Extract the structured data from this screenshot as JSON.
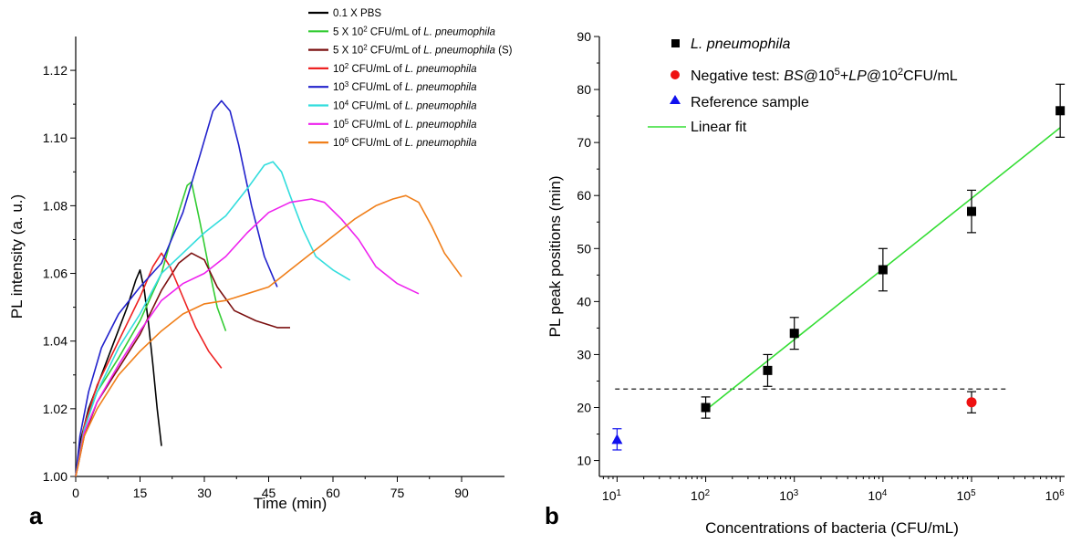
{
  "chart_data": [
    {
      "panel": "a",
      "type": "line",
      "xlabel": "Time (min)",
      "ylabel": "PL intensity (a. u.)",
      "xlim": [
        0,
        100
      ],
      "ylim": [
        1.0,
        1.13
      ],
      "xticks": [
        "0",
        "15",
        "30",
        "45",
        "60",
        "75",
        "90"
      ],
      "yticks": [
        "1.00",
        "1.02",
        "1.04",
        "1.06",
        "1.08",
        "1.10",
        "1.12"
      ],
      "legend_position": "top",
      "series": [
        {
          "name_parts": [
            "0.1 X PBS"
          ],
          "color": "#000000",
          "x": [
            0,
            1,
            3,
            6,
            9,
            12,
            14,
            15,
            16,
            17,
            18,
            19,
            20
          ],
          "y": [
            1.0,
            1.01,
            1.02,
            1.03,
            1.04,
            1.05,
            1.058,
            1.061,
            1.055,
            1.045,
            1.033,
            1.02,
            1.009
          ]
        },
        {
          "name_parts": [
            "5 X 10",
            "2",
            " CFU/mL of ",
            "L. pneumophila"
          ],
          "color": "#33cc33",
          "x": [
            0,
            2,
            5,
            10,
            15,
            20,
            24,
            26,
            27,
            29,
            31,
            33,
            35
          ],
          "y": [
            1.0,
            1.015,
            1.025,
            1.035,
            1.046,
            1.06,
            1.078,
            1.086,
            1.087,
            1.075,
            1.062,
            1.05,
            1.043
          ]
        },
        {
          "name_parts": [
            "5 X 10",
            "2",
            " CFU/mL of ",
            "L. pneumophila",
            " (S)"
          ],
          "color": "#7b1010",
          "x": [
            0,
            2,
            5,
            10,
            15,
            20,
            24,
            27,
            30,
            33,
            37,
            42,
            47,
            50
          ],
          "y": [
            1.0,
            1.012,
            1.022,
            1.032,
            1.042,
            1.055,
            1.063,
            1.066,
            1.064,
            1.056,
            1.049,
            1.046,
            1.044,
            1.044
          ]
        },
        {
          "name_parts": [
            "10",
            "2",
            " CFU/mL of ",
            "L. pneumophila"
          ],
          "color": "#ee2222",
          "x": [
            0,
            2,
            5,
            10,
            15,
            18,
            20,
            22,
            25,
            28,
            31,
            34
          ],
          "y": [
            1.0,
            1.015,
            1.027,
            1.04,
            1.053,
            1.062,
            1.066,
            1.062,
            1.053,
            1.044,
            1.037,
            1.032
          ]
        },
        {
          "name_parts": [
            "10",
            "3",
            " CFU/mL of ",
            "L. pneumophila"
          ],
          "color": "#2222cc",
          "x": [
            0,
            1,
            3,
            6,
            10,
            15,
            20,
            25,
            29,
            32,
            34,
            36,
            38,
            41,
            44,
            47
          ],
          "y": [
            1.0,
            1.012,
            1.025,
            1.038,
            1.048,
            1.056,
            1.063,
            1.078,
            1.095,
            1.108,
            1.111,
            1.108,
            1.098,
            1.08,
            1.065,
            1.056
          ]
        },
        {
          "name_parts": [
            "10",
            "4",
            " CFU/mL of ",
            "L. pneumophila"
          ],
          "color": "#33dddd",
          "x": [
            0,
            2,
            5,
            10,
            15,
            20,
            25,
            30,
            35,
            40,
            44,
            46,
            48,
            50,
            53,
            56,
            60,
            64
          ],
          "y": [
            1.0,
            1.014,
            1.025,
            1.038,
            1.048,
            1.06,
            1.066,
            1.072,
            1.077,
            1.085,
            1.092,
            1.093,
            1.09,
            1.083,
            1.073,
            1.065,
            1.061,
            1.058
          ]
        },
        {
          "name_parts": [
            "10",
            "5",
            " CFU/mL of ",
            "L. pneumophila"
          ],
          "color": "#ee22ee",
          "x": [
            0,
            2,
            5,
            10,
            15,
            20,
            25,
            30,
            35,
            40,
            45,
            50,
            55,
            58,
            62,
            66,
            70,
            75,
            80
          ],
          "y": [
            1.0,
            1.013,
            1.022,
            1.033,
            1.043,
            1.052,
            1.057,
            1.06,
            1.065,
            1.072,
            1.078,
            1.081,
            1.082,
            1.081,
            1.076,
            1.07,
            1.062,
            1.057,
            1.054
          ]
        },
        {
          "name_parts": [
            "10",
            "6",
            " CFU/mL of ",
            "L. pneumophila"
          ],
          "color": "#f07f1a",
          "x": [
            0,
            2,
            5,
            10,
            15,
            20,
            25,
            30,
            35,
            40,
            45,
            50,
            55,
            60,
            65,
            70,
            74,
            77,
            80,
            83,
            86,
            90
          ],
          "y": [
            1.0,
            1.012,
            1.02,
            1.03,
            1.037,
            1.043,
            1.048,
            1.051,
            1.052,
            1.054,
            1.056,
            1.061,
            1.066,
            1.071,
            1.076,
            1.08,
            1.082,
            1.083,
            1.081,
            1.074,
            1.066,
            1.059
          ]
        }
      ]
    },
    {
      "panel": "b",
      "type": "scatter",
      "xlabel": "Concentrations of bacteria (CFU/mL)",
      "ylabel": "PL peak positions (min)",
      "xscale": "log",
      "xlim_log10": [
        0.8,
        6.05
      ],
      "ylim": [
        7,
        90
      ],
      "xticks": [
        {
          "base": "10",
          "exp": "1"
        },
        {
          "base": "10",
          "exp": "2"
        },
        {
          "base": "10",
          "exp": "3"
        },
        {
          "base": "10",
          "exp": "4"
        },
        {
          "base": "10",
          "exp": "5"
        },
        {
          "base": "10",
          "exp": "6"
        }
      ],
      "yticks": [
        "10",
        "20",
        "30",
        "40",
        "50",
        "60",
        "70",
        "80",
        "90"
      ],
      "threshold_line": 23.5,
      "legend_position": "top-left",
      "legend": {
        "lp": "L. pneumophila",
        "neg_parts": [
          "Negative test: ",
          "BS",
          "@10",
          "5",
          "+",
          "LP",
          "@10",
          "2",
          "CFU/mL"
        ],
        "ref": "Reference sample",
        "fit": "Linear fit"
      },
      "points": [
        {
          "x": 100,
          "y": 20,
          "err": 2
        },
        {
          "x": 500,
          "y": 27,
          "err": 3
        },
        {
          "x": 1000,
          "y": 34,
          "err": 3
        },
        {
          "x": 10000,
          "y": 46,
          "err": 4
        },
        {
          "x": 100000,
          "y": 57,
          "err": 4
        },
        {
          "x": 1000000,
          "y": 76,
          "err": 5
        }
      ],
      "negative": {
        "x": 100000,
        "y": 21,
        "err": 2
      },
      "reference": {
        "x": 10,
        "y": 14,
        "err": 2
      },
      "fit": {
        "x": [
          100,
          1000000
        ],
        "y": [
          19.5,
          72.8
        ]
      },
      "colors": {
        "lp": "#000000",
        "negative": "#ee1111",
        "reference": "#1111ee",
        "fit": "#33dd33"
      }
    }
  ],
  "labels": {
    "panel_a": "a",
    "panel_b": "b"
  }
}
